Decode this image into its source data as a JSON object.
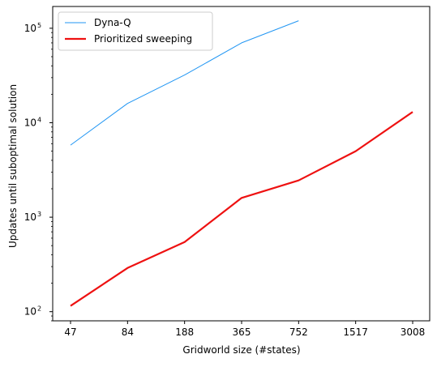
{
  "chart_data": {
    "type": "line",
    "title": "",
    "xlabel": "Gridworld size (#states)",
    "ylabel": "Updates until suboptimal solution",
    "y_scale": "log",
    "ylim": [
      80,
      170000
    ],
    "grid": false,
    "legend_placement": "top-left",
    "categories": [
      "47",
      "84",
      "188",
      "365",
      "752",
      "1517",
      "3008"
    ],
    "y_ticks": [
      {
        "value": 100,
        "base": "10",
        "exp": "2"
      },
      {
        "value": 1000,
        "base": "10",
        "exp": "3"
      },
      {
        "value": 10000,
        "base": "10",
        "exp": "4"
      },
      {
        "value": 100000,
        "base": "10",
        "exp": "5"
      }
    ],
    "series": [
      {
        "name": "Dyna-Q",
        "color": "#2196f3",
        "values": [
          5800,
          16000,
          32000,
          70000,
          120000,
          null,
          null
        ]
      },
      {
        "name": "Prioritized sweeping",
        "color": "#ee1111",
        "values": [
          115,
          290,
          545,
          1600,
          2450,
          5000,
          13000
        ]
      }
    ]
  }
}
